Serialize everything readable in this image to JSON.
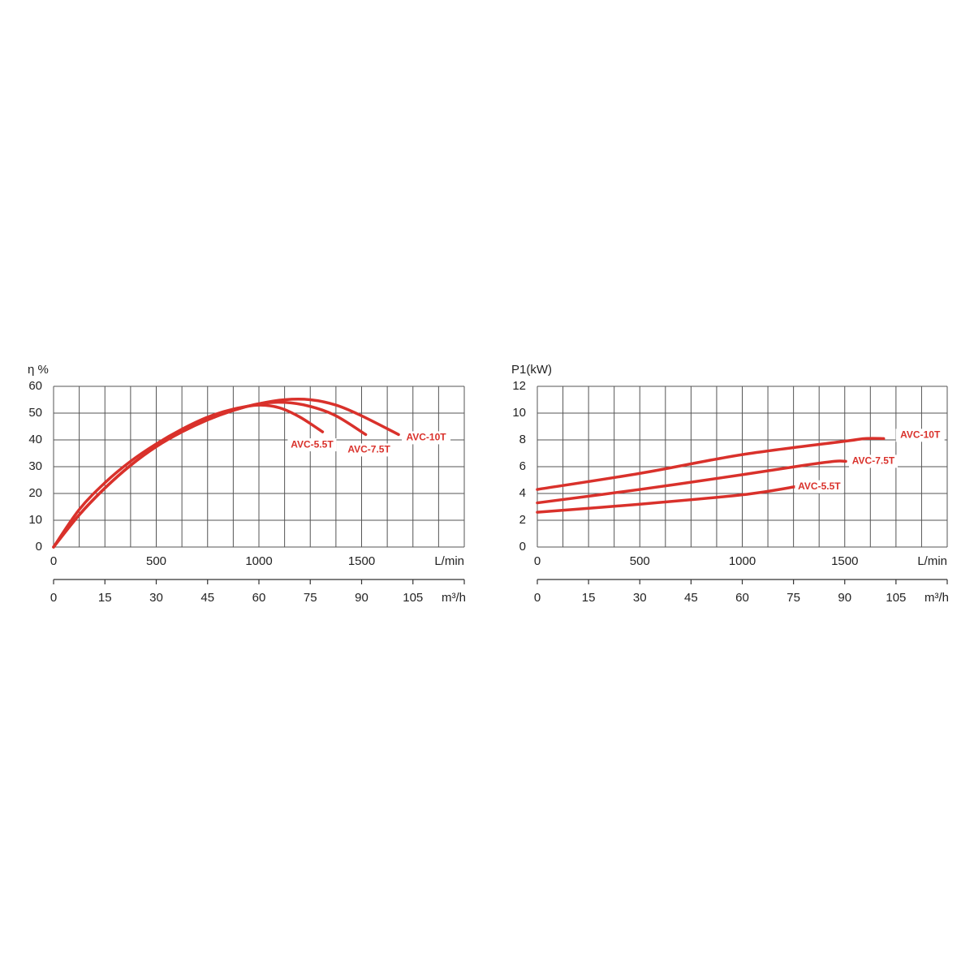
{
  "chart_data": [
    {
      "type": "line",
      "ylabel": "η %",
      "xlabel": "L/min",
      "x2label": "m³/h",
      "xlim": [
        0,
        2000
      ],
      "xticks": [
        0,
        500,
        1000,
        1500
      ],
      "xgrid": [
        0,
        125,
        250,
        375,
        500,
        625,
        750,
        875,
        1000,
        1125,
        1250,
        1375,
        1500,
        1625,
        1750,
        1875,
        2000
      ],
      "x2lim": [
        0,
        120
      ],
      "x2ticks": [
        0,
        15,
        30,
        45,
        60,
        75,
        90,
        105
      ],
      "ylim": [
        0,
        60
      ],
      "yticks": [
        0,
        10,
        20,
        30,
        40,
        50,
        60
      ],
      "grid": true,
      "series": [
        {
          "name": "AVC-5.5T",
          "color": "#d9312b",
          "x": [
            0,
            125,
            250,
            375,
            500,
            625,
            750,
            875,
            1000,
            1100,
            1200,
            1310
          ],
          "values": [
            0,
            14,
            24,
            32,
            38.5,
            44,
            48.5,
            51.5,
            53,
            52,
            48.5,
            43
          ]
        },
        {
          "name": "AVC-7.5T",
          "color": "#d9312b",
          "x": [
            0,
            125,
            250,
            375,
            500,
            625,
            750,
            875,
            1000,
            1125,
            1250,
            1375,
            1520
          ],
          "values": [
            0,
            12,
            22,
            30.5,
            37.5,
            43,
            47.5,
            51,
            53.5,
            54,
            52.5,
            49,
            42
          ]
        },
        {
          "name": "AVC-10T",
          "color": "#d9312b",
          "x": [
            0,
            125,
            250,
            375,
            500,
            625,
            750,
            875,
            1000,
            1125,
            1250,
            1375,
            1500,
            1680
          ],
          "values": [
            0,
            12,
            22,
            30.5,
            37.5,
            43,
            47.5,
            51,
            53.5,
            55,
            55,
            53,
            49,
            42
          ]
        }
      ]
    },
    {
      "type": "line",
      "ylabel": "P1(kW)",
      "xlabel": "L/min",
      "x2label": "m³/h",
      "xlim": [
        0,
        2000
      ],
      "xticks": [
        0,
        500,
        1000,
        1500
      ],
      "xgrid": [
        0,
        125,
        250,
        375,
        500,
        625,
        750,
        875,
        1000,
        1125,
        1250,
        1375,
        1500,
        1625,
        1750,
        1875,
        2000
      ],
      "x2lim": [
        0,
        120
      ],
      "x2ticks": [
        0,
        15,
        30,
        45,
        60,
        75,
        90,
        105
      ],
      "ylim": [
        0,
        12
      ],
      "yticks": [
        0,
        2,
        4,
        6,
        8,
        10,
        12
      ],
      "grid": true,
      "series": [
        {
          "name": "AVC-10T",
          "color": "#d9312b",
          "x": [
            0,
            500,
            1000,
            1500,
            1600,
            1690
          ],
          "values": [
            4.3,
            5.5,
            6.9,
            7.9,
            8.1,
            8.1
          ]
        },
        {
          "name": "AVC-7.5T",
          "color": "#d9312b",
          "x": [
            0,
            500,
            1000,
            1300,
            1450,
            1505
          ],
          "values": [
            3.3,
            4.3,
            5.4,
            6.1,
            6.4,
            6.4
          ]
        },
        {
          "name": "AVC-5.5T",
          "color": "#d9312b",
          "x": [
            0,
            500,
            1000,
            1257
          ],
          "values": [
            2.6,
            3.2,
            3.9,
            4.5
          ]
        }
      ]
    }
  ]
}
